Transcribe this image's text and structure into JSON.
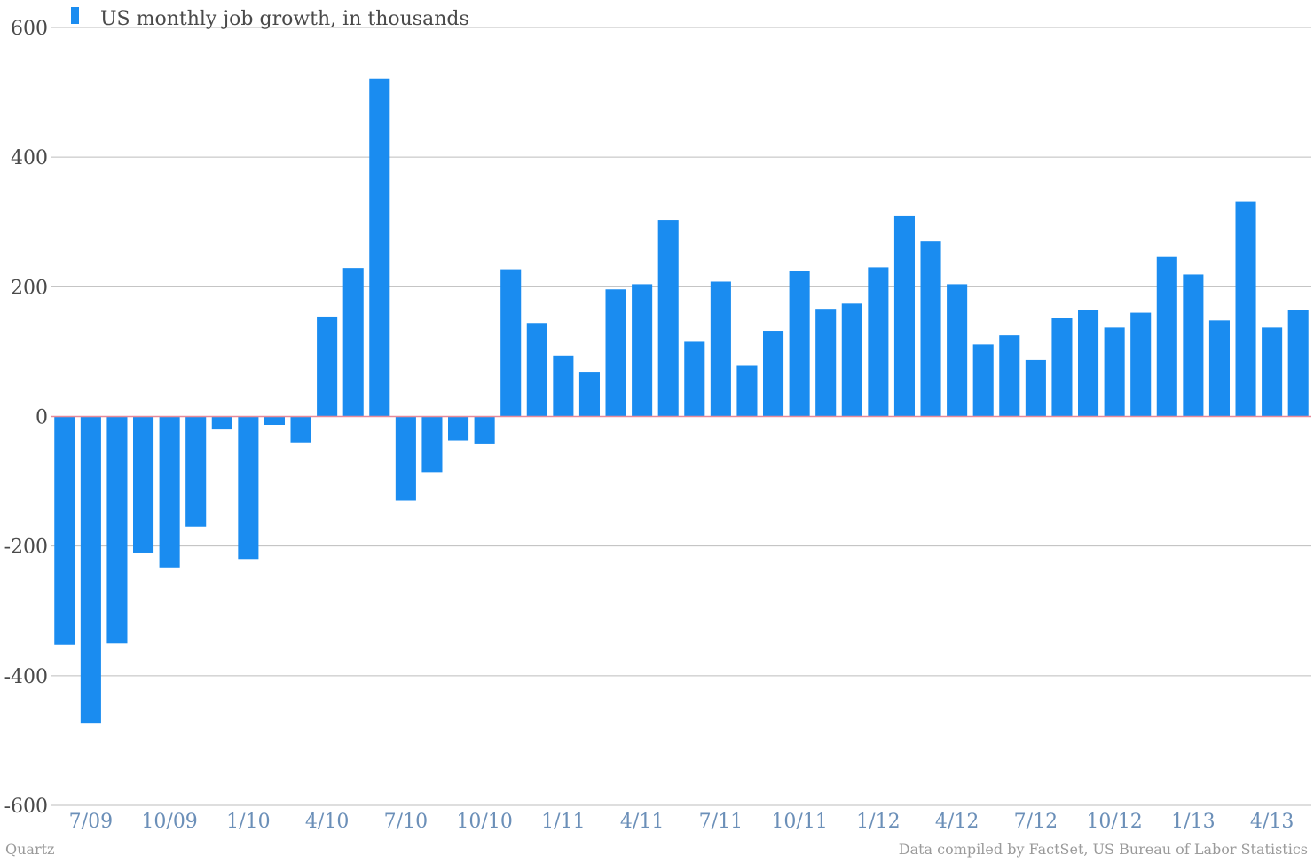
{
  "colors": {
    "bar": "#1a8cf0",
    "grid": "#bdbdbd",
    "zero_line": "#e88a9a",
    "axis_text": "#4a4a4a",
    "x_tick_text": "#6b8fb8",
    "footer_text": "#9a9a9a"
  },
  "footer": {
    "left": "Quartz",
    "right": "Data compiled by FactSet, US Bureau of Labor Statistics"
  },
  "chart_data": {
    "type": "bar",
    "title": "",
    "xlabel": "",
    "ylabel": "",
    "ylim": [
      -600,
      600
    ],
    "yticks": [
      600,
      400,
      200,
      0,
      -200,
      -400,
      -600
    ],
    "grid": true,
    "legend": {
      "position": "top-left"
    },
    "categories": [
      "6/09",
      "7/09",
      "8/09",
      "9/09",
      "10/09",
      "11/09",
      "12/09",
      "1/10",
      "2/10",
      "3/10",
      "4/10",
      "5/10",
      "6/10",
      "7/10",
      "8/10",
      "9/10",
      "10/10",
      "11/10",
      "12/10",
      "1/11",
      "2/11",
      "3/11",
      "4/11",
      "5/11",
      "6/11",
      "7/11",
      "8/11",
      "9/11",
      "10/11",
      "11/11",
      "12/11",
      "1/12",
      "2/12",
      "3/12",
      "4/12",
      "5/12",
      "6/12",
      "7/12",
      "8/12",
      "9/12",
      "10/12",
      "11/12",
      "12/12",
      "1/13",
      "2/13",
      "3/13",
      "4/13",
      "5/13"
    ],
    "x_tick_labels": [
      "7/09",
      "10/09",
      "1/10",
      "4/10",
      "7/10",
      "10/10",
      "1/11",
      "4/11",
      "7/11",
      "10/11",
      "1/12",
      "4/12",
      "7/12",
      "10/12",
      "1/13",
      "4/13"
    ],
    "series": [
      {
        "name": "US monthly job growth, in thousands",
        "values": [
          -352,
          -473,
          -350,
          -210,
          -233,
          -170,
          -20,
          -220,
          -13,
          -40,
          154,
          229,
          521,
          -130,
          -86,
          -37,
          -43,
          227,
          144,
          94,
          69,
          196,
          204,
          303,
          115,
          208,
          78,
          132,
          224,
          166,
          174,
          230,
          310,
          270,
          204,
          111,
          125,
          87,
          152,
          164,
          137,
          160,
          246,
          219,
          148,
          331,
          137,
          164
        ]
      }
    ]
  }
}
